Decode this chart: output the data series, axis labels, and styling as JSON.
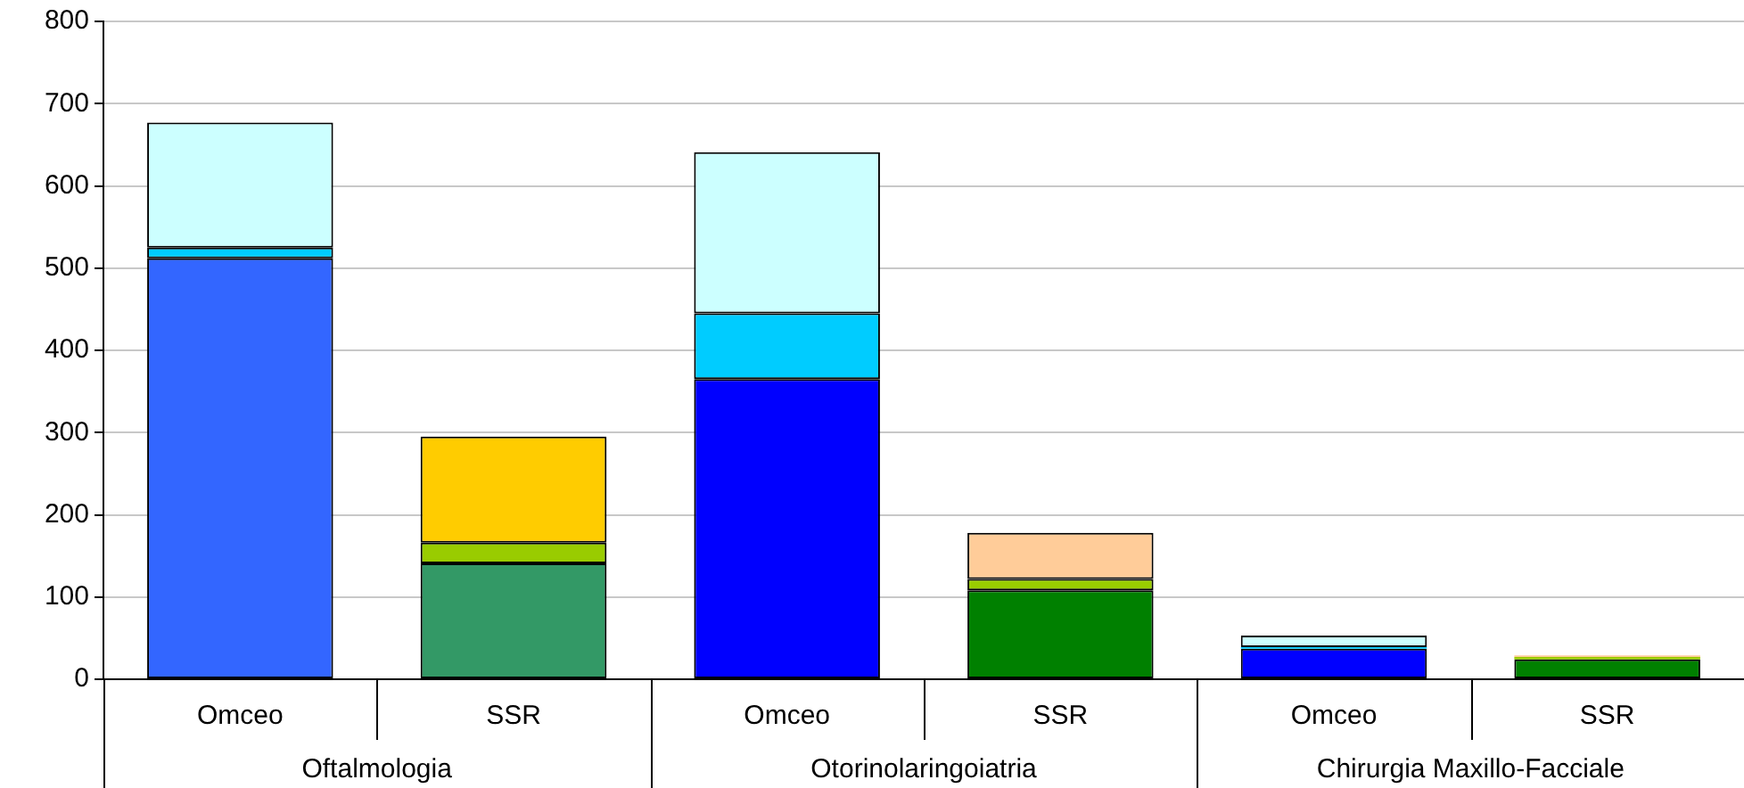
{
  "chart_data": {
    "type": "bar",
    "stacked": true,
    "categories": [
      "Omceo",
      "SSR",
      "Omceo",
      "SSR",
      "Omceo",
      "SSR"
    ],
    "series": [
      {
        "values": [
          512,
          141,
          365,
          108,
          37,
          24
        ],
        "colors": [
          "#3366ff",
          "#339966",
          "#0000ff",
          "#008000",
          "#0000ff",
          "#008000"
        ]
      },
      {
        "values": [
          13,
          25,
          80,
          14,
          2,
          3
        ],
        "colors": [
          "#00ccff",
          "#99cc00",
          "#00ccff",
          "#99cc00",
          "#00ccff",
          "#99cc00"
        ]
      },
      {
        "values": [
          152,
          129,
          196,
          56,
          14,
          2
        ],
        "colors": [
          "#ccffff",
          "#ffcc00",
          "#ccffff",
          "#ffcc99",
          "#ccffff",
          "#ffcc99"
        ]
      }
    ],
    "annotations": [
      "Oftalmologia",
      "Otorinolaringoiatria",
      "Chirurgia Maxillo-Facciale"
    ],
    "ylim": [
      0,
      800
    ],
    "yticks": [
      0,
      100,
      200,
      300,
      400,
      500,
      600,
      700,
      800
    ],
    "grid": "y",
    "legend": false
  }
}
